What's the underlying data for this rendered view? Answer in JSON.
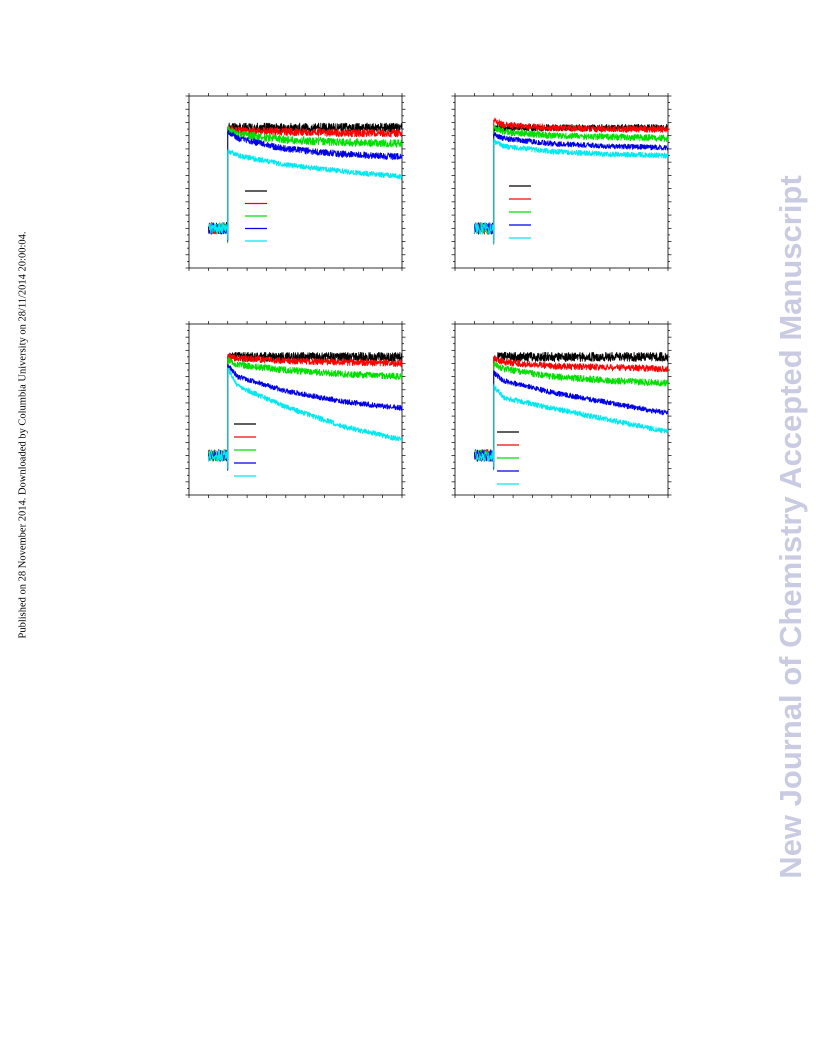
{
  "side_note": "Published on 28 November 2014. Downloaded by Columbia University on 28/11/2014 20:00:04.",
  "watermark": "New Journal of Chemistry Accepted Manuscript",
  "colors": {
    "black": "#000000",
    "red": "#ff0000",
    "green": "#00e000",
    "blue": "#0000e8",
    "cyan": "#00e8f0"
  },
  "chart_data": [
    {
      "type": "line",
      "title": "",
      "xlabel": "",
      "ylabel": "",
      "tick_labels_printed": false,
      "grid": false,
      "legend": "center-left, line samples only, no labels",
      "xlim": [
        0,
        11
      ],
      "ylim": [
        0,
        13
      ],
      "baseline": {
        "x_start": 1,
        "x_end": 2,
        "y": 3
      },
      "step_x": 2,
      "series": [
        {
          "color": "black",
          "x": [
            2,
            2.5,
            5,
            8,
            11
          ],
          "y": [
            10.6,
            10.6,
            10.6,
            10.6,
            10.6
          ],
          "noise": 0.35
        },
        {
          "color": "red",
          "x": [
            2,
            2.5,
            5,
            8,
            11
          ],
          "y": [
            10.5,
            10.4,
            10.3,
            10.2,
            10.2
          ],
          "noise": 0.3
        },
        {
          "color": "green",
          "x": [
            2,
            2.5,
            5,
            8,
            11
          ],
          "y": [
            10.5,
            10.1,
            9.7,
            9.5,
            9.4
          ],
          "noise": 0.3
        },
        {
          "color": "blue",
          "x": [
            2,
            2.5,
            5,
            8,
            11
          ],
          "y": [
            10.3,
            9.8,
            9.0,
            8.6,
            8.4
          ],
          "noise": 0.25
        },
        {
          "color": "cyan",
          "x": [
            2,
            2.5,
            5,
            8,
            11
          ],
          "y": [
            8.9,
            8.5,
            7.8,
            7.3,
            6.9
          ],
          "noise": 0.2
        }
      ]
    },
    {
      "type": "line",
      "title": "",
      "xlabel": "",
      "ylabel": "",
      "tick_labels_printed": false,
      "grid": false,
      "legend": "center-left, line samples only, no labels",
      "xlim": [
        0,
        11
      ],
      "ylim": [
        0,
        13
      ],
      "baseline": {
        "x_start": 1,
        "x_end": 2,
        "y": 3
      },
      "step_x": 2,
      "series": [
        {
          "color": "black",
          "x": [
            2,
            2.5,
            5,
            8,
            11
          ],
          "y": [
            10.6,
            10.6,
            10.6,
            10.6,
            10.6
          ],
          "noise": 0.25
        },
        {
          "color": "red",
          "x": [
            2,
            2.5,
            5,
            8,
            11
          ],
          "y": [
            11.2,
            10.8,
            10.6,
            10.5,
            10.5
          ],
          "noise": 0.25
        },
        {
          "color": "green",
          "x": [
            2,
            2.5,
            5,
            8,
            11
          ],
          "y": [
            10.6,
            10.3,
            10.0,
            9.9,
            9.8
          ],
          "noise": 0.25
        },
        {
          "color": "blue",
          "x": [
            2,
            2.5,
            5,
            8,
            11
          ],
          "y": [
            10.1,
            9.8,
            9.4,
            9.2,
            9.1
          ],
          "noise": 0.2
        },
        {
          "color": "cyan",
          "x": [
            2,
            2.5,
            5,
            8,
            11
          ],
          "y": [
            9.6,
            9.2,
            8.8,
            8.6,
            8.5
          ],
          "noise": 0.2
        }
      ]
    },
    {
      "type": "line",
      "title": "",
      "xlabel": "",
      "ylabel": "",
      "tick_labels_printed": false,
      "grid": false,
      "legend": "center-left, line samples only, no labels",
      "xlim": [
        0,
        11
      ],
      "ylim": [
        0,
        13
      ],
      "baseline": {
        "x_start": 1,
        "x_end": 2,
        "y": 3
      },
      "step_x": 2,
      "series": [
        {
          "color": "black",
          "x": [
            2,
            2.5,
            5,
            8,
            11
          ],
          "y": [
            10.5,
            10.5,
            10.5,
            10.5,
            10.5
          ],
          "noise": 0.35
        },
        {
          "color": "red",
          "x": [
            2,
            2.5,
            5,
            8,
            11
          ],
          "y": [
            10.5,
            10.4,
            10.2,
            10.1,
            10.0
          ],
          "noise": 0.25
        },
        {
          "color": "green",
          "x": [
            2,
            2.5,
            5,
            8,
            11
          ],
          "y": [
            10.3,
            9.9,
            9.5,
            9.2,
            9.0
          ],
          "noise": 0.25
        },
        {
          "color": "blue",
          "x": [
            2,
            2.5,
            5,
            8,
            11
          ],
          "y": [
            9.9,
            9.0,
            7.9,
            7.1,
            6.6
          ],
          "noise": 0.2
        },
        {
          "color": "cyan",
          "x": [
            2,
            2.5,
            5,
            8,
            11
          ],
          "y": [
            9.6,
            8.3,
            6.7,
            5.2,
            4.2
          ],
          "noise": 0.2
        }
      ]
    },
    {
      "type": "line",
      "title": "",
      "xlabel": "",
      "ylabel": "",
      "tick_labels_printed": false,
      "grid": false,
      "legend": "center-left, line samples only, no labels",
      "xlim": [
        0,
        11
      ],
      "ylim": [
        0,
        13
      ],
      "baseline": {
        "x_start": 1,
        "x_end": 2,
        "y": 3
      },
      "step_x": 2,
      "series": [
        {
          "color": "black",
          "x": [
            2,
            2.5,
            5,
            8,
            11
          ],
          "y": [
            10.5,
            10.5,
            10.5,
            10.5,
            10.5
          ],
          "noise": 0.35
        },
        {
          "color": "red",
          "x": [
            2,
            2.5,
            5,
            8,
            11
          ],
          "y": [
            10.4,
            10.1,
            9.8,
            9.7,
            9.6
          ],
          "noise": 0.25
        },
        {
          "color": "green",
          "x": [
            2,
            2.5,
            5,
            8,
            11
          ],
          "y": [
            10.0,
            9.6,
            9.0,
            8.7,
            8.5
          ],
          "noise": 0.25
        },
        {
          "color": "blue",
          "x": [
            2,
            2.5,
            5,
            8,
            11
          ],
          "y": [
            9.3,
            8.7,
            7.8,
            7.0,
            6.2
          ],
          "noise": 0.2
        },
        {
          "color": "cyan",
          "x": [
            2,
            2.5,
            5,
            8,
            11
          ],
          "y": [
            8.3,
            7.4,
            6.6,
            5.7,
            4.8
          ],
          "noise": 0.2
        }
      ]
    }
  ]
}
